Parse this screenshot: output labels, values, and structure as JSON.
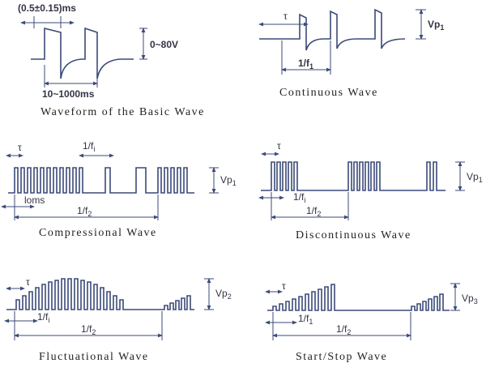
{
  "panels": [
    {
      "caption": "Waveform of the Basic Wave",
      "labels": [
        {
          "text": "(0.5±0.15)ms"
        },
        {
          "text": "0~80V"
        },
        {
          "text": "10~1000ms"
        }
      ]
    },
    {
      "caption": "Continuous Wave",
      "labels": [
        {
          "text": "τ"
        },
        {
          "text": "Vp",
          "sub": "1"
        },
        {
          "text": "1/f",
          "sub": "1"
        }
      ]
    },
    {
      "caption": "Compressional Wave",
      "labels": [
        {
          "text": "τ"
        },
        {
          "text": "1/f",
          "sub": "i"
        },
        {
          "text": "Vp",
          "sub": "1"
        },
        {
          "text": "loms"
        },
        {
          "text": "1/f",
          "sub": "2"
        }
      ]
    },
    {
      "caption": "Discontinuous Wave",
      "labels": [
        {
          "text": "τ"
        },
        {
          "text": "1/f",
          "sub": "i"
        },
        {
          "text": "Vp",
          "sub": "1"
        },
        {
          "text": "1/f",
          "sub": "2"
        }
      ]
    },
    {
      "caption": "Fluctuational Wave",
      "labels": [
        {
          "text": "τ"
        },
        {
          "text": "1/f",
          "sub": "i"
        },
        {
          "text": "Vp",
          "sub": "2"
        },
        {
          "text": "1/f",
          "sub": "2"
        }
      ]
    },
    {
      "caption": "Start/Stop Wave",
      "labels": [
        {
          "text": "τ"
        },
        {
          "text": "1/f",
          "sub": "1"
        },
        {
          "text": "Vp",
          "sub": "3"
        },
        {
          "text": "1/f",
          "sub": "2"
        }
      ]
    }
  ]
}
